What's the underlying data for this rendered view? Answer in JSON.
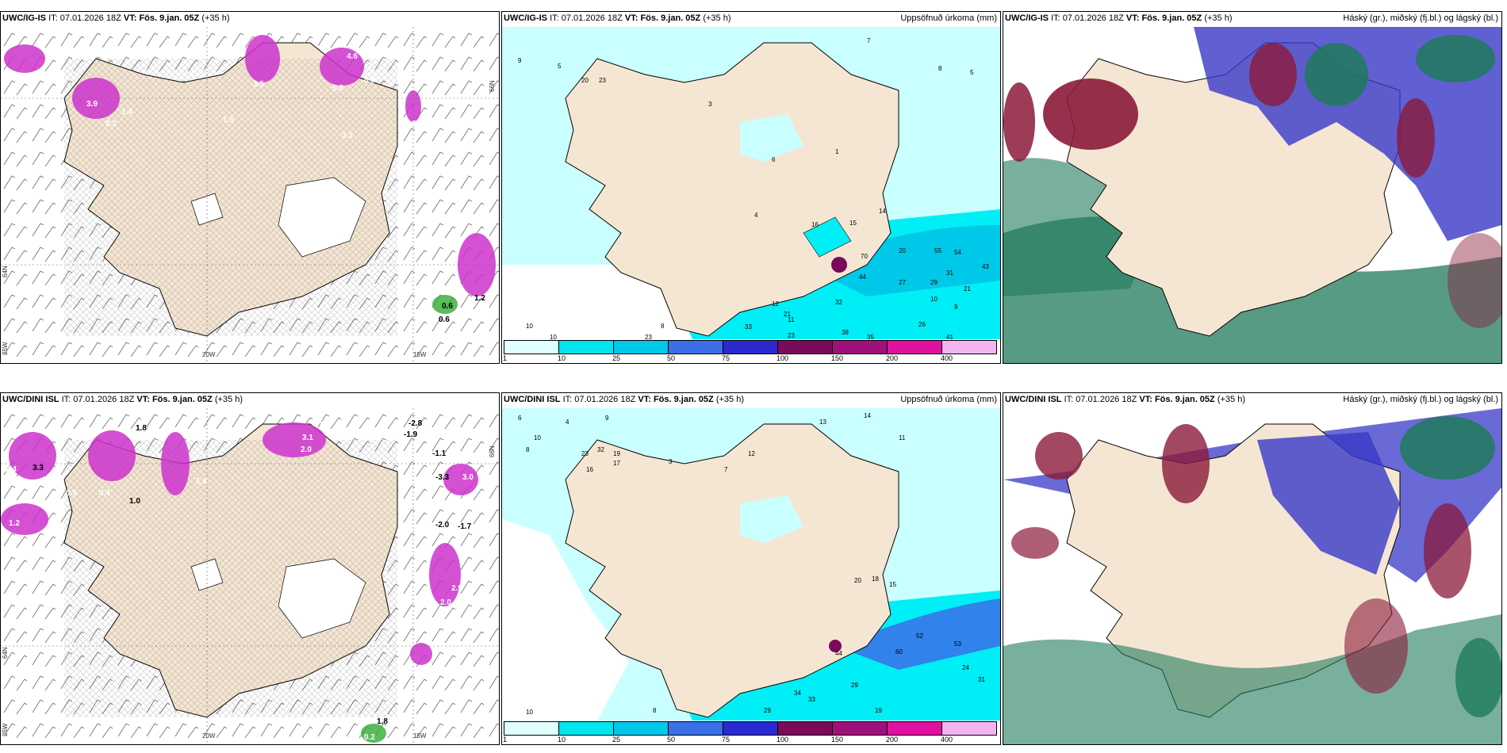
{
  "panels": {
    "p1": {
      "model": "UWC/IG-IS",
      "it_label": "IT:",
      "it": "07.01.2026 18Z",
      "vt_label": "VT:",
      "vt": "Fös. 9.jan. 05Z",
      "lead": "(+35 h)",
      "right_label": "",
      "grid_labels": [
        "20W",
        "15W",
        "25W",
        "64N",
        "66N"
      ]
    },
    "p2": {
      "model": "UWC/IG-IS",
      "it_label": "IT:",
      "it": "07.01.2026 18Z",
      "vt_label": "VT:",
      "vt": "Fös. 9.jan. 05Z",
      "lead": "(+35 h)",
      "right_label": "Uppsöfnuð úrkoma (mm)"
    },
    "p3": {
      "model": "UWC/IG-IS",
      "it_label": "IT:",
      "it": "07.01.2026 18Z",
      "vt_label": "VT:",
      "vt": "Fös. 9.jan. 05Z",
      "lead": "(+35 h)",
      "right_label": "Háský (gr.), miðský (fj.bl.) og lágský (bl.)"
    },
    "p4": {
      "model": "UWC/DINI ISL",
      "it_label": "IT:",
      "it": "07.01.2026 18Z",
      "vt_label": "VT:",
      "vt": "Fös. 9.jan. 05Z",
      "lead": "(+35 h)",
      "right_label": "",
      "grid_labels": [
        "20W",
        "15W",
        "25W",
        "64N",
        "66N"
      ]
    },
    "p5": {
      "model": "UWC/DINI ISL",
      "it_label": "IT:",
      "it": "07.01.2026 18Z",
      "vt_label": "VT:",
      "vt": "Fös. 9.jan. 05Z",
      "lead": "(+35 h)",
      "right_label": "Uppsöfnuð úrkoma (mm)"
    },
    "p6": {
      "model": "UWC/DINI ISL",
      "it_label": "IT:",
      "it": "07.01.2026 18Z",
      "vt_label": "VT:",
      "vt": "Fös. 9.jan. 05Z",
      "lead": "(+35 h)",
      "right_label": "Háský (gr.), miðský (fj.bl.) og lágský (bl.)"
    }
  },
  "precip_legend": {
    "labels": [
      "1",
      "10",
      "25",
      "50",
      "75",
      "100",
      "150",
      "200",
      "400"
    ],
    "colors": [
      "#e0ffff",
      "#00e5ee",
      "#00c8e8",
      "#3a6fe8",
      "#2a2ad0",
      "#7a0a5a",
      "#a0107a",
      "#e010a0",
      "#f4b4f0"
    ]
  },
  "map_values": {
    "p1": [
      "3.9",
      "2.2",
      "3.5",
      "4.6",
      "5.8",
      "8.8",
      "3.8",
      "0.6",
      "1.2",
      "0.6",
      "1.4",
      "3.1",
      "1.5"
    ],
    "p2": [
      "9",
      "5",
      "10",
      "23",
      "20",
      "3",
      "1",
      "7",
      "8",
      "4",
      "5",
      "6",
      "16",
      "15",
      "14",
      "70",
      "20",
      "55",
      "54",
      "43",
      "31",
      "21",
      "44",
      "27",
      "29",
      "10",
      "9",
      "26",
      "32",
      "12",
      "11",
      "21",
      "23",
      "33",
      "38",
      "35",
      "41",
      "10",
      "23",
      "8"
    ],
    "p4": [
      "2.4",
      "3.3",
      "1.8",
      "1.2",
      "2.0",
      "3.3",
      "3.1",
      "-2.8",
      "-1.9",
      "1.9",
      "0.4",
      "1.0",
      "-1.1",
      "-3.3",
      "3.0",
      "2.9",
      "2.0",
      "-2.0",
      "-1.7",
      "0.5",
      "1.8",
      "0.2"
    ],
    "p5": [
      "6",
      "4",
      "9",
      "10",
      "8",
      "23",
      "32",
      "17",
      "16",
      "19",
      "3",
      "7",
      "12",
      "11",
      "13",
      "14",
      "15",
      "20",
      "18",
      "52",
      "60",
      "53",
      "24",
      "31",
      "29",
      "34",
      "33",
      "44",
      "19",
      "10",
      "29",
      "8"
    ]
  },
  "colors": {
    "land": "#f5e6d3",
    "coast": "#000000",
    "precip_light": "#c9ffff",
    "precip_cyan": "#00eef5",
    "cloud_high": "#1f7a5c",
    "cloud_mid": "#3838c8",
    "cloud_low": "#8b1a3a",
    "snow_purple": "#cc33cc"
  }
}
